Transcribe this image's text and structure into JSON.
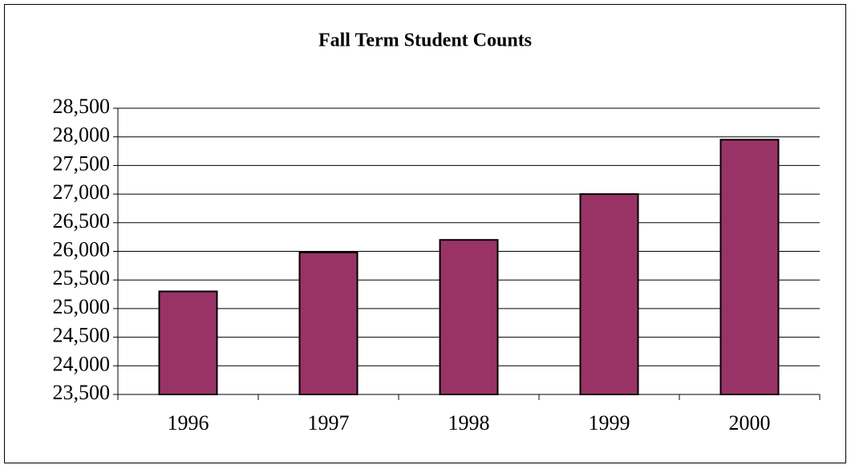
{
  "chart_data": {
    "type": "bar",
    "title": "Fall Term Student Counts",
    "categories": [
      "1996",
      "1997",
      "1998",
      "1999",
      "2000"
    ],
    "values": [
      25300,
      25980,
      26200,
      27000,
      27950
    ],
    "color": "#993366",
    "ylim": [
      23500,
      28500
    ],
    "yticks": [
      {
        "value": 23500,
        "label": "23,500"
      },
      {
        "value": 24000,
        "label": "24,000"
      },
      {
        "value": 24500,
        "label": "24,500"
      },
      {
        "value": 25000,
        "label": "25,000"
      },
      {
        "value": 25500,
        "label": "25,500"
      },
      {
        "value": 26000,
        "label": "26,000"
      },
      {
        "value": 26500,
        "label": "26,500"
      },
      {
        "value": 27000,
        "label": "27,000"
      },
      {
        "value": 27500,
        "label": "27,500"
      },
      {
        "value": 28000,
        "label": "28,000"
      },
      {
        "value": 28500,
        "label": "28,500"
      }
    ],
    "grid": true
  }
}
